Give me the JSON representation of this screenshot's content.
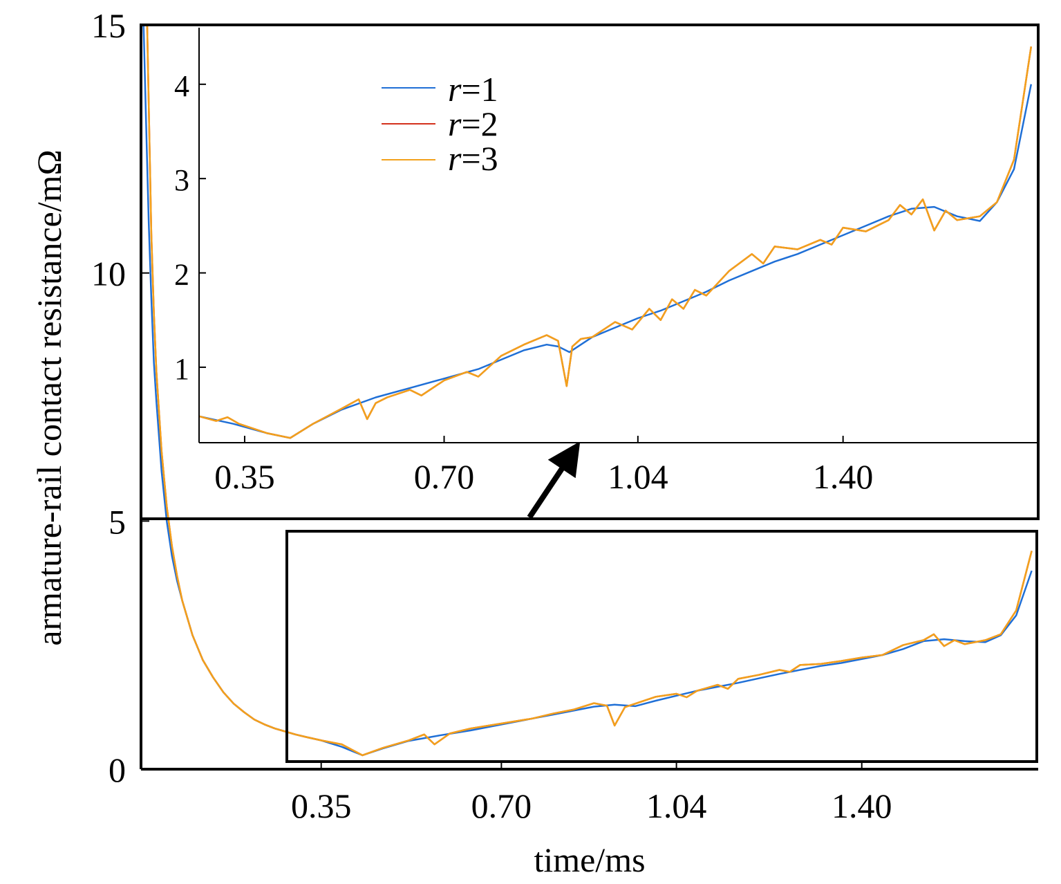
{
  "chart_data": [
    {
      "id": "main",
      "type": "line",
      "xlabel": "time/ms",
      "ylabel": "armature-rail contact resistance/mΩ",
      "xlim": [
        0.0,
        1.74
      ],
      "ylim": [
        0,
        15
      ],
      "x_ticks": [
        {
          "value": 0.35,
          "label": "0.35"
        },
        {
          "value": 0.7,
          "label": "0.70"
        },
        {
          "value": 1.04,
          "label": "1.04"
        },
        {
          "value": 1.4,
          "label": "1.40"
        }
      ],
      "y_ticks": [
        {
          "value": 0,
          "label": "0"
        },
        {
          "value": 5,
          "label": "5"
        },
        {
          "value": 10,
          "label": "10"
        },
        {
          "value": 15,
          "label": "15"
        }
      ],
      "grid": false,
      "legend": "none",
      "series": [
        {
          "name": "r=1",
          "color": "#1f6fd6",
          "x": [
            0.005,
            0.01,
            0.015,
            0.02,
            0.025,
            0.03,
            0.04,
            0.05,
            0.06,
            0.07,
            0.08,
            0.1,
            0.12,
            0.14,
            0.16,
            0.18,
            0.2,
            0.22,
            0.24,
            0.26,
            0.28,
            0.3,
            0.32,
            0.35,
            0.39,
            0.43,
            0.47,
            0.52,
            0.58,
            0.64,
            0.7,
            0.76,
            0.8,
            0.84,
            0.88,
            0.92,
            0.96,
            1.0,
            1.04,
            1.08,
            1.12,
            1.16,
            1.2,
            1.24,
            1.28,
            1.32,
            1.36,
            1.4,
            1.44,
            1.48,
            1.52,
            1.56,
            1.6,
            1.64,
            1.67,
            1.7,
            1.73
          ],
          "y": [
            15,
            13.0,
            11.0,
            9.5,
            8.2,
            7.4,
            6.0,
            5.0,
            4.3,
            3.8,
            3.4,
            2.7,
            2.2,
            1.85,
            1.55,
            1.32,
            1.15,
            1.0,
            0.9,
            0.82,
            0.76,
            0.7,
            0.65,
            0.58,
            0.45,
            0.28,
            0.42,
            0.57,
            0.68,
            0.78,
            0.9,
            1.02,
            1.1,
            1.18,
            1.26,
            1.3,
            1.27,
            1.38,
            1.48,
            1.58,
            1.66,
            1.74,
            1.83,
            1.92,
            2.0,
            2.08,
            2.14,
            2.22,
            2.3,
            2.42,
            2.58,
            2.62,
            2.58,
            2.56,
            2.7,
            3.1,
            4.0
          ]
        },
        {
          "name": "r=2",
          "color": "#d4301c",
          "x": [
            0.012,
            0.02,
            0.025,
            0.03,
            0.04,
            0.05,
            0.06,
            0.07,
            0.08,
            0.1,
            0.12,
            0.14,
            0.16,
            0.18,
            0.2,
            0.22,
            0.24,
            0.26,
            0.28,
            0.3,
            0.32,
            0.35,
            0.39,
            0.43,
            0.47,
            0.52,
            0.55,
            0.57,
            0.6,
            0.64,
            0.7,
            0.76,
            0.8,
            0.84,
            0.88,
            0.905,
            0.92,
            0.94,
            0.96,
            1.0,
            1.04,
            1.06,
            1.08,
            1.12,
            1.14,
            1.16,
            1.2,
            1.24,
            1.26,
            1.28,
            1.32,
            1.36,
            1.4,
            1.44,
            1.48,
            1.52,
            1.54,
            1.56,
            1.58,
            1.6,
            1.64,
            1.67,
            1.7,
            1.73
          ],
          "y": [
            15,
            10.8,
            9.2,
            8.0,
            6.4,
            5.3,
            4.5,
            3.9,
            3.4,
            2.7,
            2.2,
            1.85,
            1.55,
            1.32,
            1.15,
            1.0,
            0.9,
            0.82,
            0.76,
            0.7,
            0.65,
            0.58,
            0.5,
            0.28,
            0.43,
            0.58,
            0.7,
            0.5,
            0.72,
            0.82,
            0.92,
            1.02,
            1.12,
            1.2,
            1.33,
            1.28,
            0.88,
            1.25,
            1.32,
            1.46,
            1.52,
            1.45,
            1.58,
            1.7,
            1.62,
            1.82,
            1.9,
            2.0,
            1.96,
            2.1,
            2.12,
            2.18,
            2.25,
            2.3,
            2.5,
            2.6,
            2.72,
            2.48,
            2.6,
            2.52,
            2.6,
            2.72,
            3.2,
            4.4
          ]
        },
        {
          "name": "r=3",
          "color": "#f2a11c",
          "x": [
            0.012,
            0.02,
            0.025,
            0.03,
            0.04,
            0.05,
            0.06,
            0.07,
            0.08,
            0.1,
            0.12,
            0.14,
            0.16,
            0.18,
            0.2,
            0.22,
            0.24,
            0.26,
            0.28,
            0.3,
            0.32,
            0.35,
            0.39,
            0.43,
            0.47,
            0.52,
            0.55,
            0.57,
            0.6,
            0.64,
            0.7,
            0.76,
            0.8,
            0.84,
            0.88,
            0.905,
            0.92,
            0.94,
            0.96,
            1.0,
            1.04,
            1.06,
            1.08,
            1.12,
            1.14,
            1.16,
            1.2,
            1.24,
            1.26,
            1.28,
            1.32,
            1.36,
            1.4,
            1.44,
            1.48,
            1.52,
            1.54,
            1.56,
            1.58,
            1.6,
            1.64,
            1.67,
            1.7,
            1.73
          ],
          "y": [
            15,
            10.8,
            9.2,
            8.0,
            6.4,
            5.3,
            4.5,
            3.9,
            3.4,
            2.7,
            2.2,
            1.85,
            1.55,
            1.32,
            1.15,
            1.0,
            0.9,
            0.82,
            0.76,
            0.7,
            0.65,
            0.58,
            0.5,
            0.28,
            0.43,
            0.58,
            0.7,
            0.5,
            0.72,
            0.82,
            0.92,
            1.02,
            1.12,
            1.2,
            1.33,
            1.28,
            0.88,
            1.25,
            1.32,
            1.46,
            1.52,
            1.45,
            1.58,
            1.7,
            1.62,
            1.82,
            1.9,
            2.0,
            1.96,
            2.1,
            2.12,
            2.18,
            2.25,
            2.3,
            2.5,
            2.6,
            2.72,
            2.48,
            2.6,
            2.52,
            2.6,
            2.72,
            3.2,
            4.4
          ]
        }
      ]
    },
    {
      "id": "inset",
      "type": "line",
      "xlim": [
        0.27,
        1.74
      ],
      "ylim": [
        0.2,
        4.6
      ],
      "x_ticks": [
        {
          "value": 0.35,
          "label": "0.35"
        },
        {
          "value": 0.7,
          "label": "0.70"
        },
        {
          "value": 1.04,
          "label": "1.04"
        },
        {
          "value": 1.4,
          "label": "1.40"
        }
      ],
      "y_ticks": [
        {
          "value": 1,
          "label": "1"
        },
        {
          "value": 2,
          "label": "2"
        },
        {
          "value": 3,
          "label": "3"
        },
        {
          "value": 4,
          "label": "4"
        }
      ],
      "grid": false,
      "legend": "top-left",
      "series": [
        {
          "name": "r=1",
          "color": "#1f6fd6",
          "x": [
            0.27,
            0.3,
            0.33,
            0.36,
            0.39,
            0.43,
            0.47,
            0.52,
            0.58,
            0.64,
            0.7,
            0.76,
            0.8,
            0.84,
            0.88,
            0.9,
            0.92,
            0.94,
            0.96,
            1.0,
            1.04,
            1.08,
            1.12,
            1.16,
            1.2,
            1.24,
            1.28,
            1.32,
            1.36,
            1.4,
            1.44,
            1.48,
            1.52,
            1.56,
            1.6,
            1.64,
            1.67,
            1.7,
            1.73
          ],
          "y": [
            0.48,
            0.44,
            0.4,
            0.35,
            0.3,
            0.25,
            0.4,
            0.55,
            0.68,
            0.78,
            0.88,
            0.98,
            1.08,
            1.18,
            1.24,
            1.22,
            1.16,
            1.24,
            1.32,
            1.42,
            1.52,
            1.6,
            1.7,
            1.8,
            1.92,
            2.02,
            2.12,
            2.2,
            2.3,
            2.4,
            2.5,
            2.6,
            2.68,
            2.7,
            2.6,
            2.55,
            2.75,
            3.1,
            4.0
          ]
        },
        {
          "name": "r=2",
          "color": "#d4301c",
          "x": [
            0.27,
            0.3,
            0.32,
            0.34,
            0.36,
            0.39,
            0.43,
            0.47,
            0.52,
            0.55,
            0.565,
            0.58,
            0.6,
            0.64,
            0.66,
            0.7,
            0.74,
            0.76,
            0.8,
            0.84,
            0.88,
            0.9,
            0.915,
            0.925,
            0.94,
            0.96,
            1.0,
            1.03,
            1.06,
            1.08,
            1.1,
            1.12,
            1.14,
            1.16,
            1.2,
            1.24,
            1.26,
            1.28,
            1.32,
            1.36,
            1.38,
            1.4,
            1.44,
            1.48,
            1.5,
            1.52,
            1.54,
            1.56,
            1.58,
            1.6,
            1.64,
            1.67,
            1.7,
            1.73
          ],
          "y": [
            0.48,
            0.43,
            0.47,
            0.4,
            0.36,
            0.3,
            0.25,
            0.4,
            0.56,
            0.66,
            0.45,
            0.62,
            0.68,
            0.76,
            0.7,
            0.86,
            0.95,
            0.9,
            1.12,
            1.24,
            1.34,
            1.28,
            0.8,
            1.22,
            1.3,
            1.32,
            1.48,
            1.4,
            1.62,
            1.5,
            1.72,
            1.62,
            1.82,
            1.76,
            2.02,
            2.2,
            2.1,
            2.28,
            2.25,
            2.35,
            2.3,
            2.48,
            2.44,
            2.56,
            2.72,
            2.62,
            2.78,
            2.45,
            2.66,
            2.56,
            2.6,
            2.75,
            3.2,
            4.4
          ]
        },
        {
          "name": "r=3",
          "color": "#f2a11c",
          "x": [
            0.27,
            0.3,
            0.32,
            0.34,
            0.36,
            0.39,
            0.43,
            0.47,
            0.52,
            0.55,
            0.565,
            0.58,
            0.6,
            0.64,
            0.66,
            0.7,
            0.74,
            0.76,
            0.8,
            0.84,
            0.88,
            0.9,
            0.915,
            0.925,
            0.94,
            0.96,
            1.0,
            1.03,
            1.06,
            1.08,
            1.1,
            1.12,
            1.14,
            1.16,
            1.2,
            1.24,
            1.26,
            1.28,
            1.32,
            1.36,
            1.38,
            1.4,
            1.44,
            1.48,
            1.5,
            1.52,
            1.54,
            1.56,
            1.58,
            1.6,
            1.64,
            1.67,
            1.7,
            1.73
          ],
          "y": [
            0.48,
            0.43,
            0.47,
            0.4,
            0.36,
            0.3,
            0.25,
            0.4,
            0.56,
            0.66,
            0.45,
            0.62,
            0.68,
            0.76,
            0.7,
            0.86,
            0.95,
            0.9,
            1.12,
            1.24,
            1.34,
            1.28,
            0.8,
            1.22,
            1.3,
            1.32,
            1.48,
            1.4,
            1.62,
            1.5,
            1.72,
            1.62,
            1.82,
            1.76,
            2.02,
            2.2,
            2.1,
            2.28,
            2.25,
            2.35,
            2.3,
            2.48,
            2.44,
            2.56,
            2.72,
            2.62,
            2.78,
            2.45,
            2.66,
            2.56,
            2.6,
            2.75,
            3.2,
            4.4
          ]
        }
      ]
    }
  ],
  "legend": {
    "entries": [
      {
        "var": "r",
        "rest": "=1",
        "color": "#1f6fd6"
      },
      {
        "var": "r",
        "rest": "=2",
        "color": "#d4301c"
      },
      {
        "var": "r",
        "rest": "=3",
        "color": "#f2a11c"
      }
    ]
  },
  "zoom_region": {
    "x": [
      0.29,
      1.74
    ],
    "y": [
      0.1,
      4.7
    ]
  }
}
